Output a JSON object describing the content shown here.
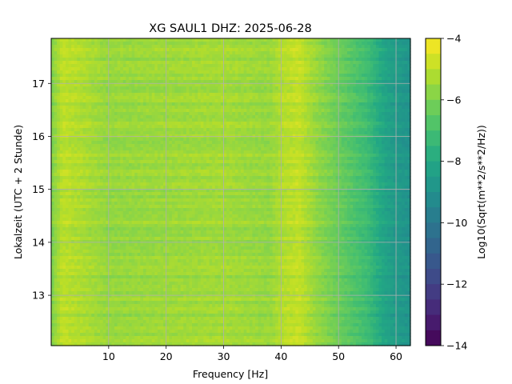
{
  "chart_data": {
    "type": "heatmap",
    "title": "XG SAUL1  DHZ: 2025-06-28",
    "xlabel": "Frequency [Hz]",
    "ylabel": "Lokalzeit (UTC + 2 Stunde)",
    "colorbar_label": "Log10(Sqrt(m**2/s**2/Hz))",
    "xlim": [
      0,
      62.5
    ],
    "ylim": [
      17.85,
      12.05
    ],
    "x_ticks": [
      10,
      20,
      30,
      40,
      50,
      60
    ],
    "y_ticks": [
      13,
      14,
      15,
      16,
      17
    ],
    "clim": [
      -14,
      -4
    ],
    "colorbar_ticks": [
      -4,
      -6,
      -8,
      -10,
      -12,
      -14
    ],
    "colormap": "viridis",
    "grid": true,
    "approx_profile": {
      "frequency_hz": [
        0,
        2,
        10,
        20,
        30,
        38,
        40,
        43,
        46,
        50,
        55,
        58,
        60,
        62.5
      ],
      "log10_psd": [
        -6.0,
        -5.0,
        -5.6,
        -5.5,
        -5.4,
        -5.6,
        -5.2,
        -4.9,
        -5.6,
        -6.3,
        -7.2,
        -8.2,
        -8.6,
        -8.9
      ]
    }
  }
}
